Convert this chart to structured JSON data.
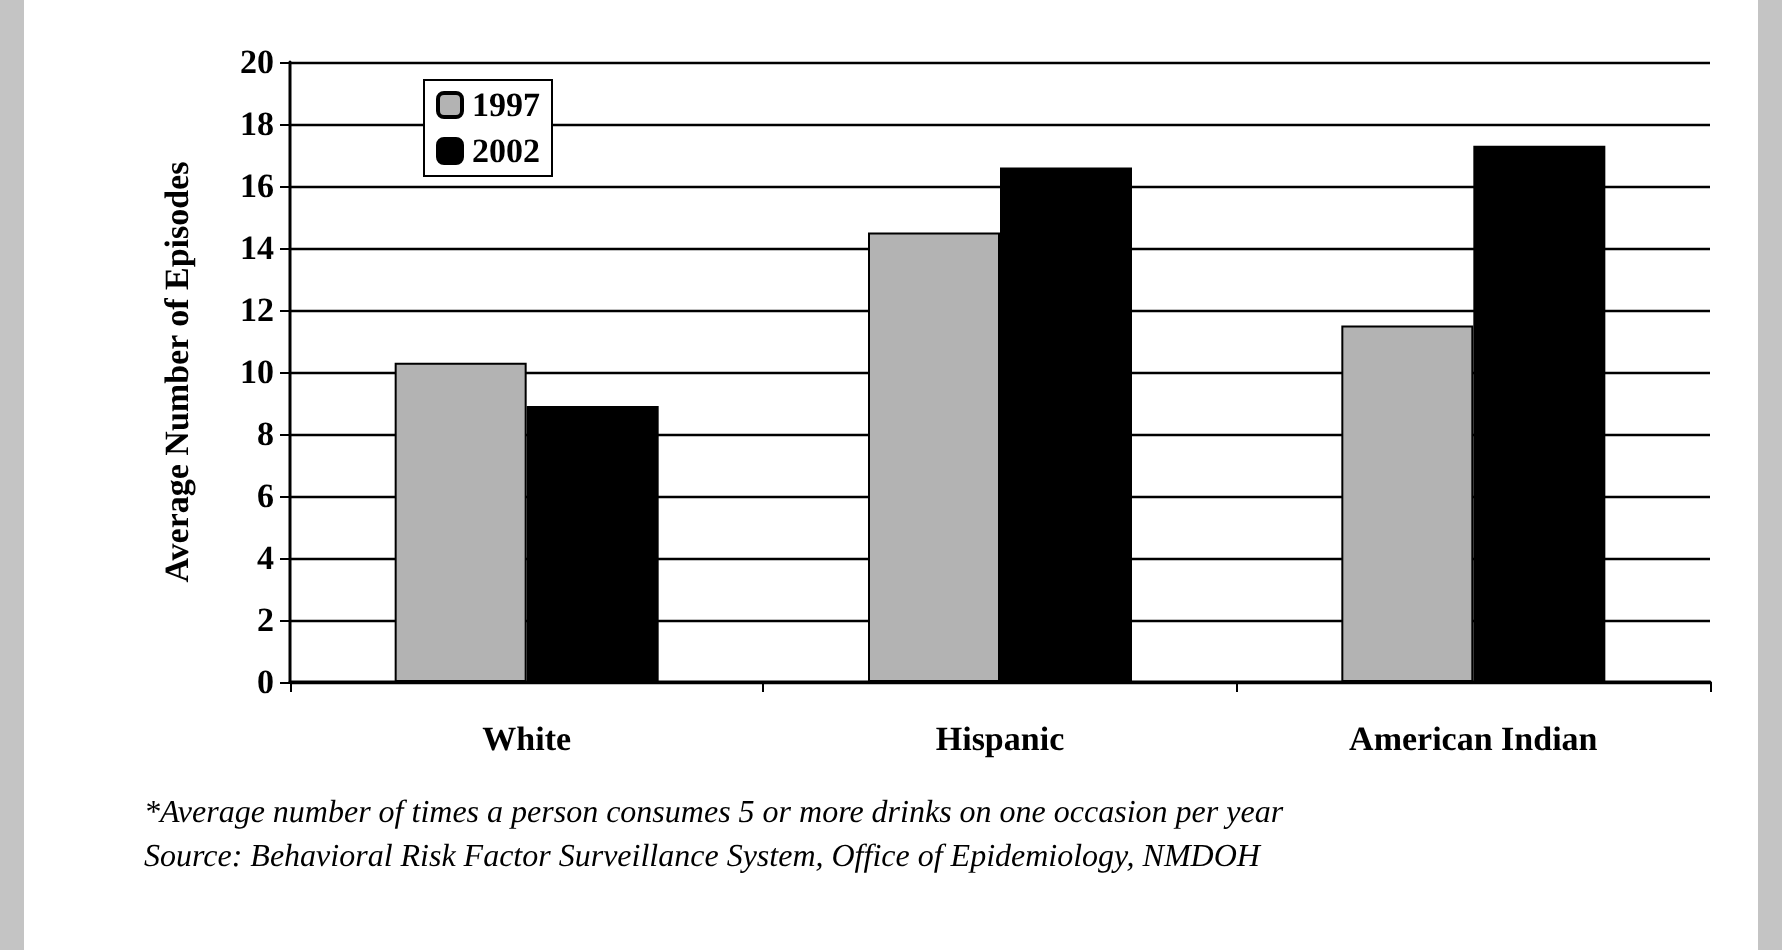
{
  "chart_data": {
    "type": "bar",
    "ylabel": "Average Number of Episodes",
    "categories": [
      "White",
      "Hispanic",
      "American Indian"
    ],
    "series": [
      {
        "name": "1997",
        "color": "#b3b3b3",
        "values": [
          10.3,
          14.5,
          11.5
        ]
      },
      {
        "name": "2002",
        "color": "#000000",
        "values": [
          8.9,
          16.6,
          17.3
        ]
      }
    ],
    "ylim": [
      0,
      20
    ],
    "yticks": [
      0,
      2,
      4,
      6,
      8,
      10,
      12,
      14,
      16,
      18,
      20
    ],
    "grid": "y",
    "legend": "top left",
    "annotations": [
      "*Average number of times a person consumes 5 or more drinks on one occasion per year",
      "Source: Behavioral Risk Factor Surveillance System, Office of Epidemiology, NMDOH"
    ]
  }
}
